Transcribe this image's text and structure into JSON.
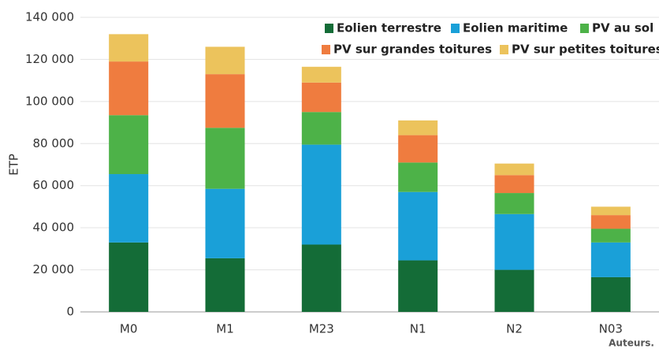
{
  "chart_data": {
    "type": "stacked-bar",
    "y_label": "ETP",
    "source": "Auteurs.",
    "categories": [
      "M0",
      "M1",
      "M23",
      "N1",
      "N2",
      "N03"
    ],
    "series": [
      {
        "name": "Eolien terrestre",
        "color": "#146c37",
        "values": [
          33000,
          25500,
          32000,
          24500,
          20000,
          16500
        ]
      },
      {
        "name": "Eolien maritime",
        "color": "#1aa0d8",
        "values": [
          32500,
          33000,
          47500,
          32500,
          26500,
          16500
        ]
      },
      {
        "name": "PV au sol",
        "color": "#4db248",
        "values": [
          28000,
          29000,
          15500,
          14000,
          10000,
          6500
        ]
      },
      {
        "name": "PV sur grandes toitures",
        "color": "#ef7c3f",
        "values": [
          25500,
          25500,
          14000,
          13000,
          8500,
          6500
        ]
      },
      {
        "name": "PV sur petites toitures",
        "color": "#ecc35c",
        "values": [
          13000,
          13000,
          7500,
          7000,
          5500,
          4000
        ]
      }
    ],
    "ylim": [
      0,
      140000
    ],
    "yticks": [
      0,
      {
        "value": 20000,
        "label": "20 000"
      },
      {
        "value": 40000,
        "label": "40 000"
      },
      {
        "value": 60000,
        "label": "60 000"
      },
      {
        "value": 80000,
        "label": "80 000"
      },
      {
        "value": 100000,
        "label": "100 000"
      },
      {
        "value": 120000,
        "label": "120 000"
      },
      {
        "value": 140000,
        "label": "140 000"
      }
    ],
    "grid": true,
    "legend": "top-right"
  }
}
